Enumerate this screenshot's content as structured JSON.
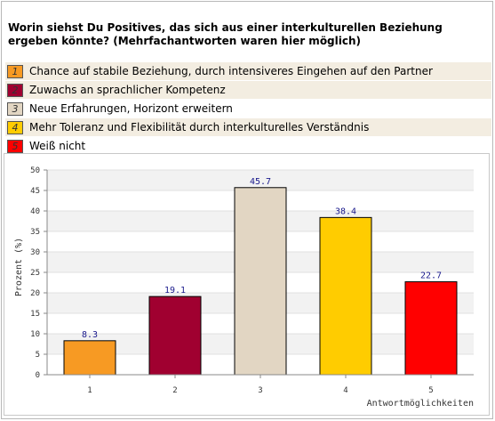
{
  "question": "Worin siehst Du Positives, das sich aus einer interkulturellen Beziehung ergeben könnte? (Mehrfachantworten waren hier möglich)",
  "legend": [
    {
      "num": "1",
      "label": "Chance auf stabile Beziehung, durch intensiveres Eingehen auf den Partner",
      "color": "#f79a23"
    },
    {
      "num": "2",
      "label": "Zuwachs an sprachlicher Kompetenz",
      "color": "#a00030"
    },
    {
      "num": "3",
      "label": "Neue Erfahrungen, Horizont erweitern",
      "color": "#e2d6c3"
    },
    {
      "num": "4",
      "label": "Mehr Toleranz und Flexibilität durch interkulturelles Verständnis",
      "color": "#ffcc00"
    },
    {
      "num": "5",
      "label": "Weiß nicht",
      "color": "#ff0000"
    }
  ],
  "chart_data": {
    "type": "bar",
    "categories": [
      "1",
      "2",
      "3",
      "4",
      "5"
    ],
    "values": [
      8.3,
      19.1,
      45.7,
      38.4,
      22.7
    ],
    "value_labels": [
      "8.3",
      "19.1",
      "45.7",
      "38.4",
      "22.7"
    ],
    "colors": [
      "#f79a23",
      "#a00030",
      "#e2d6c3",
      "#ffcc00",
      "#ff0000"
    ],
    "ylabel": "Prozent (%)",
    "xlabel": "Antwortmöglichkeiten",
    "ylim": [
      0,
      50
    ],
    "yticks": [
      "0",
      "5",
      "10",
      "15",
      "20",
      "25",
      "30",
      "35",
      "40",
      "45",
      "50"
    ],
    "grid": true
  }
}
